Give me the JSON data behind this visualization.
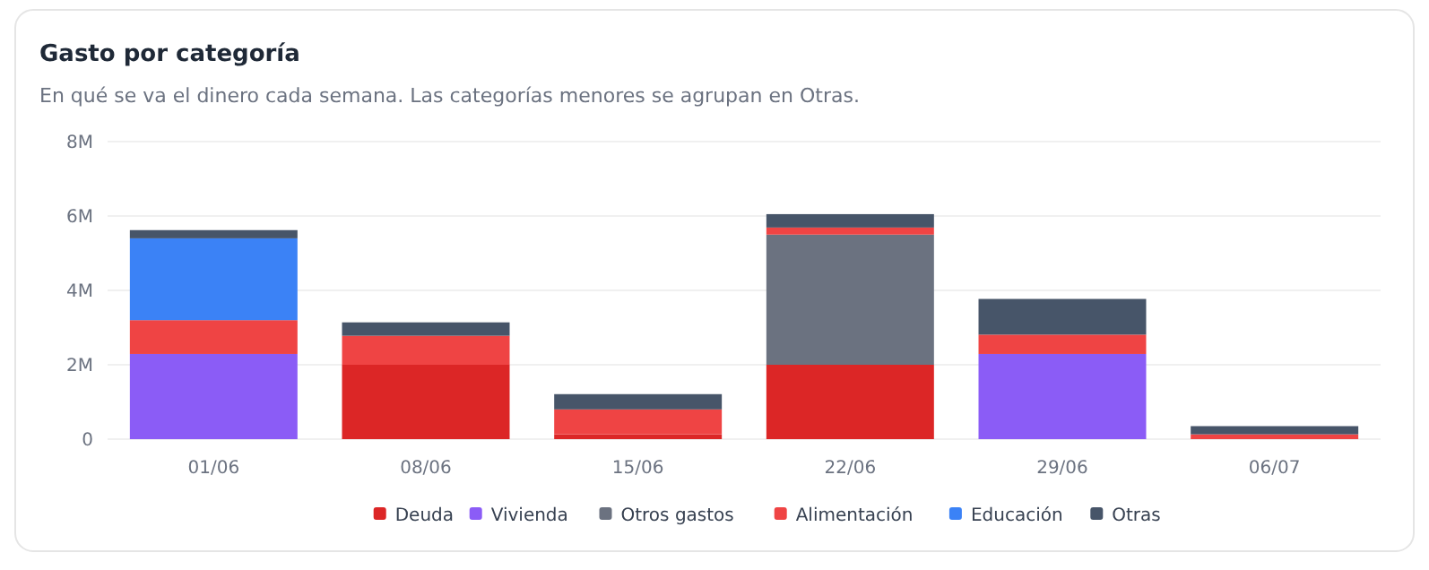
{
  "chart_data": {
    "type": "bar",
    "title": "Gasto por categoría",
    "subtitle": "En qué se va el dinero cada semana. Las categorías menores se agrupan en Otras.",
    "stacked": true,
    "grid": "y",
    "legend": "bottom",
    "categories": [
      "01/06",
      "08/06",
      "15/06",
      "22/06",
      "29/06",
      "06/07"
    ],
    "ylim": [
      0,
      8
    ],
    "yticks": [
      {
        "value": 0,
        "label": "0"
      },
      {
        "value": 2,
        "label": "2M"
      },
      {
        "value": 4,
        "label": "4M"
      },
      {
        "value": 6,
        "label": "6M"
      },
      {
        "value": 8,
        "label": "8M"
      }
    ],
    "series": [
      {
        "name": "Deuda",
        "color": "#dc2626",
        "values": [
          null,
          2.0,
          0.13,
          2.0,
          null,
          null
        ]
      },
      {
        "name": "Vivienda",
        "color": "#8b5cf6",
        "values": [
          2.29,
          null,
          null,
          null,
          2.29,
          null
        ]
      },
      {
        "name": "Otros gastos",
        "color": "#6b7280",
        "values": [
          null,
          null,
          null,
          3.5,
          null,
          null
        ]
      },
      {
        "name": "Alimentación",
        "color": "#ef4444",
        "values": [
          0.91,
          0.78,
          0.67,
          0.19,
          0.52,
          0.13
        ]
      },
      {
        "name": "Educación",
        "color": "#3b82f6",
        "values": [
          2.2,
          null,
          null,
          null,
          null,
          null
        ]
      },
      {
        "name": "Otras",
        "color": "#475569",
        "values": [
          0.22,
          0.36,
          0.41,
          0.36,
          0.96,
          0.22
        ]
      }
    ]
  }
}
